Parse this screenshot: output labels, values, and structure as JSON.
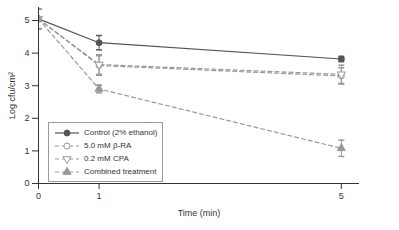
{
  "chart_data": {
    "type": "line",
    "x_label": "Time (min)",
    "y_label": "Log cfu/cm²",
    "x": [
      0,
      1,
      5
    ],
    "xlim": [
      0,
      5.3
    ],
    "xticks": [
      0,
      1,
      5
    ],
    "ylim": [
      0,
      5.4
    ],
    "yticks": [
      0,
      1,
      2,
      3,
      4,
      5
    ],
    "legend": "lower left",
    "series": [
      {
        "name": "Control (2% ethanol)",
        "color": "#555555",
        "marker": "circle",
        "line_style": "solid",
        "values": [
          5.05,
          4.32,
          3.82
        ],
        "errors": [
          0.3,
          0.22,
          0.08
        ]
      },
      {
        "name": "5.0 mM β-RA",
        "color": "#999999",
        "marker": "circle-open",
        "line_style": "dashed",
        "values": [
          5.05,
          3.62,
          3.3
        ],
        "errors": [
          0.3,
          0.3,
          0.25
        ]
      },
      {
        "name": "0.2 mM CPA",
        "color": "#999999",
        "marker": "triangle-down-open",
        "line_style": "dashed",
        "values": [
          5.05,
          3.65,
          3.35
        ],
        "errors": [
          0.3,
          0.3,
          0.28
        ]
      },
      {
        "name": "Combined treatment",
        "color": "#999999",
        "marker": "triangle",
        "line_style": "dashed",
        "values": [
          5.05,
          2.9,
          1.08
        ],
        "errors": [
          0.3,
          0.12,
          0.25
        ]
      }
    ]
  }
}
